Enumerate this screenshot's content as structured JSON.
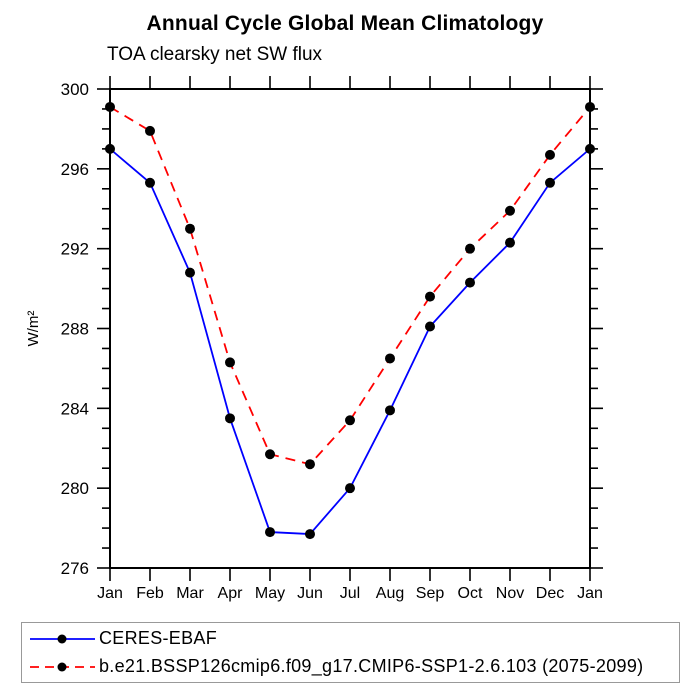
{
  "chart_data": {
    "type": "line",
    "title": "Annual Cycle Global Mean Climatology",
    "subtitle": "TOA clearsky net SW flux",
    "ylabel": "W/m²",
    "xlabel": "",
    "categories": [
      "Jan",
      "Feb",
      "Mar",
      "Apr",
      "May",
      "Jun",
      "Jul",
      "Aug",
      "Sep",
      "Oct",
      "Nov",
      "Dec",
      "Jan"
    ],
    "series": [
      {
        "name": "CERES-EBAF",
        "color": "#0000ff",
        "style": "solid",
        "marker": "circle",
        "marker_color": "#000000",
        "values": [
          297.0,
          295.3,
          290.8,
          283.5,
          277.8,
          277.7,
          280.0,
          283.9,
          288.1,
          290.3,
          292.3,
          295.3,
          297.0
        ]
      },
      {
        "name": "b.e21.BSSP126cmip6.f09_g17.CMIP6-SSP1-2.6.103 (2075-2099)",
        "color": "#ff0000",
        "style": "dashed",
        "marker": "circle",
        "marker_color": "#000000",
        "values": [
          299.1,
          297.9,
          293.0,
          286.3,
          281.7,
          281.2,
          283.4,
          286.5,
          289.6,
          292.0,
          293.9,
          296.7,
          299.1
        ]
      }
    ],
    "ylim": [
      276,
      300
    ],
    "yticks": [
      276,
      280,
      284,
      288,
      292,
      296,
      300
    ],
    "ytick_minor_step": 1,
    "grid": false,
    "legend_position": "bottom-left",
    "axis_color": "#000000"
  }
}
